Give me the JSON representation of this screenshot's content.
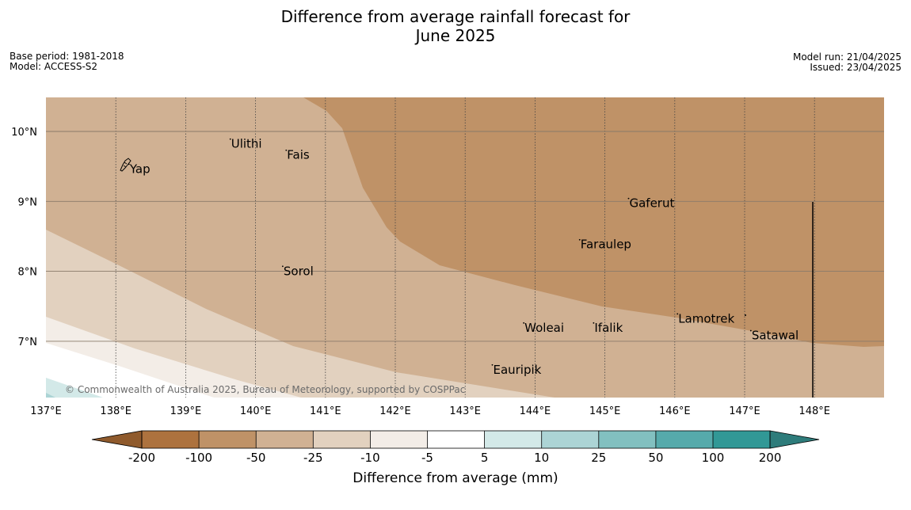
{
  "title_line1": "Difference from average rainfall forecast for",
  "title_line2": "June 2025",
  "meta_left": {
    "base_period": "Base period: 1981-2018",
    "model": "Model: ACCESS-S2"
  },
  "meta_right": {
    "model_run": "Model run: 21/04/2025",
    "issued": "Issued: 23/04/2025"
  },
  "copyright": "© Commonwealth of Australia 2025, Bureau of Meteorology, supported by COSPPac",
  "map": {
    "lon_ticks": [
      "137°E",
      "138°E",
      "139°E",
      "140°E",
      "141°E",
      "142°E",
      "143°E",
      "144°E",
      "145°E",
      "146°E",
      "147°E",
      "148°E"
    ],
    "lat_ticks": [
      "10°N",
      "9°N",
      "8°N",
      "7°N"
    ],
    "places": [
      {
        "name": "Yap",
        "lon": 138.2,
        "lat": 9.52
      },
      {
        "name": "Ulithi",
        "lon": 139.65,
        "lat": 9.88
      },
      {
        "name": "Fais",
        "lon": 140.45,
        "lat": 9.72
      },
      {
        "name": "Gaferut",
        "lon": 145.35,
        "lat": 9.03
      },
      {
        "name": "Faraulep",
        "lon": 144.65,
        "lat": 8.44
      },
      {
        "name": "Sorol",
        "lon": 140.4,
        "lat": 8.06
      },
      {
        "name": "Lamotrek",
        "lon": 146.05,
        "lat": 7.38
      },
      {
        "name": "Woleai",
        "lon": 143.85,
        "lat": 7.25
      },
      {
        "name": "Ifalik",
        "lon": 144.85,
        "lat": 7.25
      },
      {
        "name": "Satawal",
        "lon": 147.1,
        "lat": 7.14
      },
      {
        "name": "Eauripik",
        "lon": 143.4,
        "lat": 6.65
      }
    ]
  },
  "colorbar": {
    "label": "Difference from average (mm)",
    "ticks": [
      "-200",
      "-100",
      "-50",
      "-25",
      "-10",
      "-5",
      "5",
      "10",
      "25",
      "50",
      "100",
      "200"
    ],
    "colors": [
      "#8f5a2c",
      "#ad723e",
      "#bf9267",
      "#d0b193",
      "#e2d1bf",
      "#f3ede7",
      "#ffffff",
      "#d3e9e8",
      "#acd4d5",
      "#82c0c0",
      "#56aaab",
      "#319896",
      "#2e7c7b"
    ]
  }
}
